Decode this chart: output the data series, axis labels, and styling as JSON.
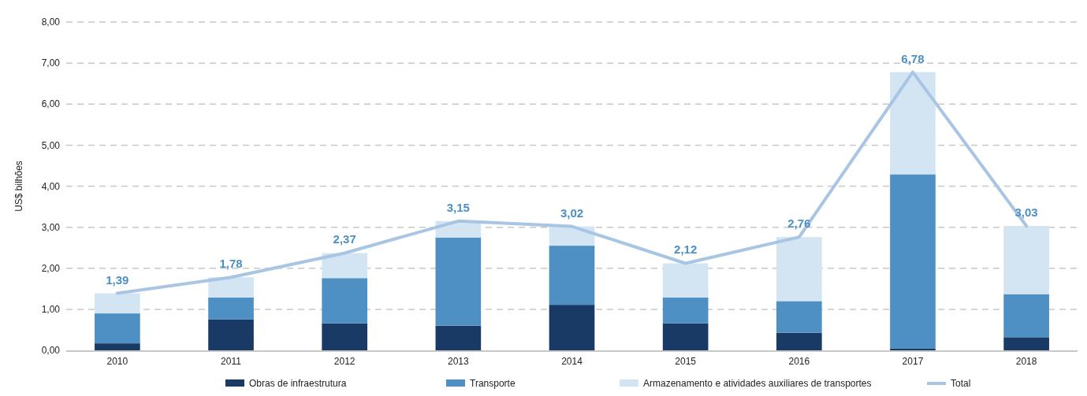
{
  "chart_data": {
    "type": "bar",
    "stacked": true,
    "ylabel": "US$ bilhões",
    "categories": [
      "2010",
      "2011",
      "2012",
      "2013",
      "2014",
      "2015",
      "2016",
      "2017",
      "2018"
    ],
    "series": [
      {
        "name": "Obras de infraestrutura",
        "color": "#1a3a66",
        "values": [
          0.17,
          0.75,
          0.66,
          0.6,
          1.11,
          0.66,
          0.43,
          0.04,
          0.32
        ]
      },
      {
        "name": "Transporte",
        "color": "#4e90c4",
        "values": [
          0.73,
          0.54,
          1.1,
          2.15,
          1.44,
          0.63,
          0.77,
          4.25,
          1.05
        ]
      },
      {
        "name": "Armazenamento e atividades auxiliares de transportes",
        "color": "#d3e5f3",
        "values": [
          0.49,
          0.49,
          0.61,
          0.4,
          0.47,
          0.83,
          1.56,
          2.49,
          1.66
        ]
      },
      {
        "name": "Total",
        "type": "line",
        "color": "#a8c5e3",
        "values": [
          1.39,
          1.78,
          2.37,
          3.15,
          3.02,
          2.12,
          2.76,
          6.78,
          3.03
        ],
        "value_labels": [
          "1,39",
          "1,78",
          "2,37",
          "3,15",
          "3,02",
          "2,12",
          "2,76",
          "6,78",
          "3,03"
        ]
      }
    ],
    "ylim": [
      0,
      8
    ],
    "yticks": [
      {
        "value": 0,
        "label": "0,00"
      },
      {
        "value": 1,
        "label": "1,00"
      },
      {
        "value": 2,
        "label": "2,00"
      },
      {
        "value": 3,
        "label": "3,00"
      },
      {
        "value": 4,
        "label": "4,00"
      },
      {
        "value": 5,
        "label": "5,00"
      },
      {
        "value": 6,
        "label": "6,00"
      },
      {
        "value": 7,
        "label": "7,00"
      },
      {
        "value": 8,
        "label": "8,00"
      }
    ],
    "grid": "y",
    "legend": "bottom"
  }
}
